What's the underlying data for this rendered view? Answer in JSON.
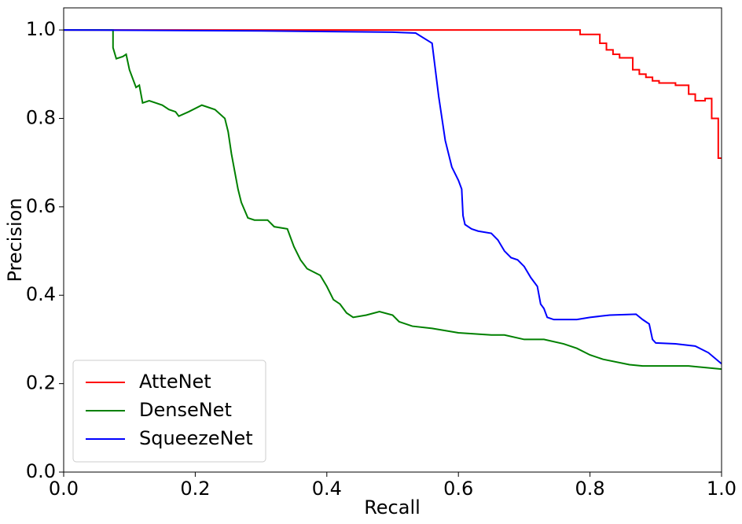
{
  "chart_data": {
    "type": "line",
    "xlabel": "Recall",
    "ylabel": "Precision",
    "xlim": [
      0,
      1
    ],
    "ylim": [
      0,
      1.05
    ],
    "xticks": [
      {
        "value": 0,
        "label": "0.0"
      },
      0.2,
      0.4,
      0.6,
      0.8,
      {
        "value": 1,
        "label": "1.0"
      }
    ],
    "yticks": [
      {
        "value": 0,
        "label": "0.0"
      },
      0.2,
      0.4,
      0.6,
      0.8,
      {
        "value": 1,
        "label": "1.0"
      }
    ],
    "legend": "lower left",
    "series": [
      {
        "name": "AtteNet",
        "color": "#ff0000",
        "x": [
          0,
          0.785,
          0.785,
          0.815,
          0.815,
          0.825,
          0.825,
          0.835,
          0.835,
          0.845,
          0.845,
          0.865,
          0.865,
          0.875,
          0.875,
          0.885,
          0.885,
          0.895,
          0.895,
          0.905,
          0.905,
          0.93,
          0.93,
          0.95,
          0.95,
          0.96,
          0.96,
          0.975,
          0.975,
          0.985,
          0.985,
          0.995,
          0.995,
          1.0
        ],
        "values": [
          1,
          1,
          0.99,
          0.99,
          0.97,
          0.97,
          0.955,
          0.955,
          0.945,
          0.945,
          0.937,
          0.937,
          0.91,
          0.91,
          0.9,
          0.9,
          0.893,
          0.893,
          0.885,
          0.885,
          0.88,
          0.88,
          0.875,
          0.875,
          0.855,
          0.855,
          0.84,
          0.84,
          0.845,
          0.845,
          0.8,
          0.8,
          0.71,
          0.71
        ]
      },
      {
        "name": "DenseNet",
        "color": "#008000",
        "x": [
          0,
          0.075,
          0.075,
          0.08,
          0.09,
          0.095,
          0.1,
          0.11,
          0.115,
          0.12,
          0.13,
          0.14,
          0.15,
          0.16,
          0.17,
          0.175,
          0.19,
          0.21,
          0.23,
          0.245,
          0.25,
          0.255,
          0.26,
          0.265,
          0.27,
          0.28,
          0.29,
          0.31,
          0.32,
          0.34,
          0.35,
          0.36,
          0.37,
          0.39,
          0.4,
          0.41,
          0.42,
          0.43,
          0.44,
          0.46,
          0.48,
          0.5,
          0.51,
          0.53,
          0.56,
          0.6,
          0.65,
          0.67,
          0.7,
          0.73,
          0.76,
          0.78,
          0.8,
          0.82,
          0.86,
          0.88,
          0.95,
          1.0
        ],
        "values": [
          1,
          1,
          0.96,
          0.935,
          0.94,
          0.945,
          0.91,
          0.87,
          0.875,
          0.835,
          0.84,
          0.835,
          0.83,
          0.82,
          0.815,
          0.805,
          0.815,
          0.83,
          0.82,
          0.8,
          0.77,
          0.72,
          0.68,
          0.64,
          0.61,
          0.575,
          0.57,
          0.57,
          0.555,
          0.55,
          0.51,
          0.48,
          0.46,
          0.445,
          0.42,
          0.39,
          0.38,
          0.36,
          0.35,
          0.355,
          0.363,
          0.355,
          0.34,
          0.33,
          0.325,
          0.315,
          0.31,
          0.31,
          0.3,
          0.3,
          0.29,
          0.28,
          0.265,
          0.255,
          0.243,
          0.24,
          0.24,
          0.233
        ]
      },
      {
        "name": "SqueezeNet",
        "color": "#0000ff",
        "x": [
          0,
          0.3,
          0.5,
          0.535,
          0.56,
          0.57,
          0.58,
          0.59,
          0.6,
          0.605,
          0.607,
          0.61,
          0.62,
          0.63,
          0.65,
          0.66,
          0.67,
          0.68,
          0.69,
          0.7,
          0.71,
          0.72,
          0.725,
          0.73,
          0.735,
          0.745,
          0.78,
          0.8,
          0.83,
          0.87,
          0.88,
          0.89,
          0.895,
          0.9,
          0.93,
          0.96,
          0.98,
          1.0
        ],
        "values": [
          1,
          0.998,
          0.995,
          0.993,
          0.97,
          0.85,
          0.75,
          0.69,
          0.66,
          0.64,
          0.58,
          0.56,
          0.55,
          0.545,
          0.54,
          0.525,
          0.5,
          0.485,
          0.48,
          0.465,
          0.44,
          0.42,
          0.38,
          0.37,
          0.35,
          0.345,
          0.345,
          0.35,
          0.355,
          0.357,
          0.345,
          0.335,
          0.3,
          0.292,
          0.29,
          0.285,
          0.27,
          0.245
        ]
      }
    ]
  }
}
